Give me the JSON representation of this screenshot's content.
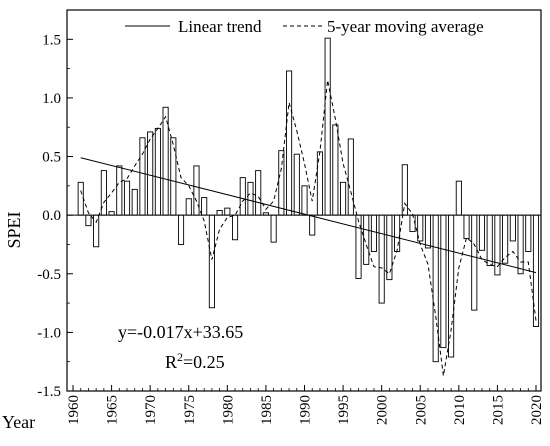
{
  "chart_data": {
    "type": "bar",
    "xlabel": "Year",
    "ylabel": "SPEI",
    "xlim": [
      1960,
      2020
    ],
    "ylim": [
      -1.5,
      1.75
    ],
    "x_ticks": [
      1960,
      1965,
      1970,
      1975,
      1980,
      1985,
      1990,
      1995,
      2000,
      2005,
      2010,
      2015,
      2020
    ],
    "y_ticks": [
      -1.5,
      -1.0,
      -0.5,
      0.0,
      0.5,
      1.0,
      1.5
    ],
    "y_tick_labels": [
      "-1.5",
      "-1.0",
      "-0.5",
      "0.0",
      "0.5",
      "1.0",
      "1.5"
    ],
    "grid": false,
    "legend_position": "top",
    "series": [
      {
        "type": "bar",
        "x": [
          1961,
          1962,
          1963,
          1964,
          1965,
          1966,
          1967,
          1968,
          1969,
          1970,
          1971,
          1972,
          1973,
          1974,
          1975,
          1976,
          1977,
          1978,
          1979,
          1980,
          1981,
          1982,
          1983,
          1984,
          1985,
          1986,
          1987,
          1988,
          1989,
          1990,
          1991,
          1992,
          1993,
          1994,
          1995,
          1996,
          1997,
          1998,
          1999,
          2000,
          2001,
          2002,
          2003,
          2004,
          2005,
          2006,
          2007,
          2008,
          2009,
          2010,
          2011,
          2012,
          2013,
          2014,
          2015,
          2016,
          2017,
          2018,
          2019,
          2020
        ],
        "values": [
          0.28,
          -0.09,
          -0.27,
          0.38,
          0.03,
          0.42,
          0.29,
          0.22,
          0.66,
          0.71,
          0.74,
          0.92,
          0.66,
          -0.25,
          0.14,
          0.42,
          0.15,
          -0.79,
          0.04,
          0.06,
          -0.21,
          0.32,
          0.28,
          0.38,
          0.02,
          -0.23,
          0.55,
          1.23,
          0.52,
          0.25,
          -0.17,
          0.54,
          1.51,
          0.77,
          0.28,
          0.65,
          -0.54,
          -0.42,
          -0.31,
          -0.75,
          -0.55,
          -0.31,
          0.43,
          -0.14,
          -0.22,
          -0.28,
          -1.25,
          -1.13,
          -1.21,
          0.29,
          -0.2,
          -0.81,
          -0.3,
          -0.43,
          -0.51,
          -0.41,
          -0.22,
          -0.5,
          -0.31,
          -0.95
        ]
      },
      {
        "type": "line",
        "name": "5-year moving average",
        "style": "dashed",
        "x": [
          1961,
          1962,
          1963,
          1964,
          1965,
          1966,
          1967,
          1968,
          1969,
          1970,
          1971,
          1972,
          1973,
          1974,
          1975,
          1976,
          1977,
          1978,
          1979,
          1980,
          1981,
          1982,
          1983,
          1984,
          1985,
          1986,
          1987,
          1988,
          1989,
          1990,
          1991,
          1992,
          1993,
          1994,
          1995,
          1996,
          1997,
          1998,
          1999,
          2000,
          2001,
          2002,
          2003,
          2004,
          2005,
          2006,
          2007,
          2008,
          2009,
          2010,
          2011,
          2012,
          2013,
          2014,
          2015,
          2016,
          2017,
          2018,
          2019,
          2020
        ],
        "values": [
          0.21,
          0.02,
          -0.06,
          0.11,
          0.19,
          0.28,
          0.31,
          0.42,
          0.52,
          0.65,
          0.74,
          0.84,
          0.6,
          0.32,
          0.25,
          0.12,
          -0.05,
          -0.38,
          -0.12,
          -0.02,
          0.0,
          0.12,
          0.19,
          0.16,
          0.05,
          0.12,
          0.4,
          0.96,
          0.72,
          0.44,
          0.12,
          0.54,
          1.15,
          0.82,
          0.44,
          0.2,
          -0.05,
          -0.25,
          -0.44,
          -0.45,
          -0.5,
          -0.3,
          0.1,
          0.01,
          -0.25,
          -0.42,
          -0.86,
          -1.37,
          -0.98,
          -0.45,
          -0.19,
          -0.25,
          -0.38,
          -0.42,
          -0.44,
          -0.36,
          -0.31,
          -0.4,
          -0.4,
          -0.9
        ]
      },
      {
        "type": "line",
        "name": "Linear trend",
        "style": "solid",
        "x": [
          1961,
          2020
        ],
        "values": [
          0.49,
          -0.49
        ]
      }
    ],
    "legend": [
      "Linear trend",
      "5-year moving average"
    ],
    "annotations": {
      "equation": "y=-0.017x+33.65",
      "r2_prefix": "R",
      "r2_sup": "2",
      "r2_value": "=0.25"
    }
  }
}
